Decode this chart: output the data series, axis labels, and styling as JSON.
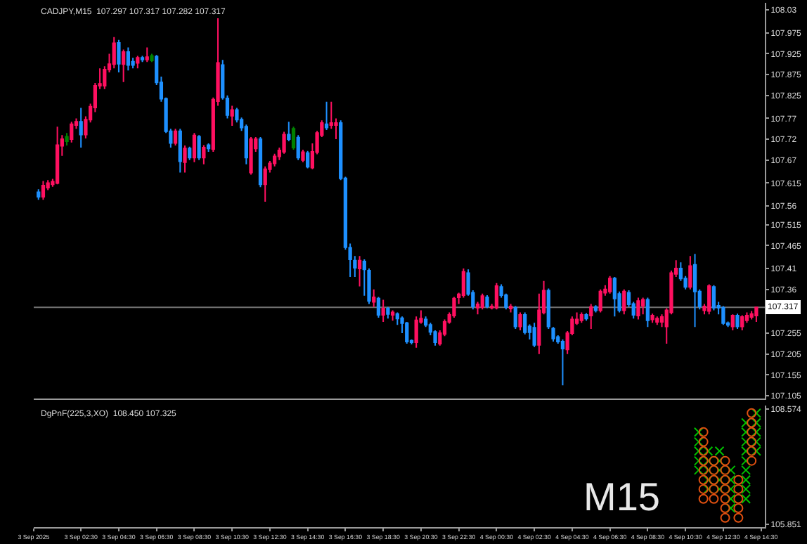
{
  "chart_data": [
    {
      "type": "candlestick",
      "title": "CADJPY,M15  107.297 107.317 107.282 107.317",
      "x": [
        "2025-09-03T00:15",
        "2025-09-03T00:30",
        "2025-09-03T00:45",
        "2025-09-03T01:00",
        "2025-09-03T01:15",
        "2025-09-03T01:30",
        "2025-09-03T01:45",
        "2025-09-03T02:00",
        "2025-09-03T02:15",
        "2025-09-03T02:30",
        "2025-09-03T02:45",
        "2025-09-03T03:00",
        "2025-09-03T03:15",
        "2025-09-03T03:30",
        "2025-09-03T03:45",
        "2025-09-03T04:00",
        "2025-09-03T04:15",
        "2025-09-03T04:30",
        "2025-09-03T04:45",
        "2025-09-03T05:00",
        "2025-09-03T05:15",
        "2025-09-03T05:30",
        "2025-09-03T05:45",
        "2025-09-03T06:00",
        "2025-09-03T06:15",
        "2025-09-03T06:30",
        "2025-09-03T06:45",
        "2025-09-03T07:00",
        "2025-09-03T07:15",
        "2025-09-03T07:30",
        "2025-09-03T07:45",
        "2025-09-03T08:00",
        "2025-09-03T08:15",
        "2025-09-03T08:30",
        "2025-09-03T08:45",
        "2025-09-03T09:00",
        "2025-09-03T09:15",
        "2025-09-03T09:30",
        "2025-09-03T09:45",
        "2025-09-03T10:00",
        "2025-09-03T10:15",
        "2025-09-03T10:30",
        "2025-09-03T10:45",
        "2025-09-03T11:00",
        "2025-09-03T11:15",
        "2025-09-03T11:30",
        "2025-09-03T11:45",
        "2025-09-03T12:00",
        "2025-09-03T12:15",
        "2025-09-03T12:30",
        "2025-09-03T12:45",
        "2025-09-03T13:00",
        "2025-09-03T13:15",
        "2025-09-03T13:30",
        "2025-09-03T13:45",
        "2025-09-03T14:00",
        "2025-09-03T14:15",
        "2025-09-03T14:30",
        "2025-09-03T14:45",
        "2025-09-03T15:00",
        "2025-09-03T15:15",
        "2025-09-03T15:30",
        "2025-09-03T15:45",
        "2025-09-03T16:00",
        "2025-09-03T16:15",
        "2025-09-03T16:30",
        "2025-09-03T16:45",
        "2025-09-03T17:00",
        "2025-09-03T17:15",
        "2025-09-03T17:30",
        "2025-09-03T17:45",
        "2025-09-03T18:00",
        "2025-09-03T18:15",
        "2025-09-03T18:30",
        "2025-09-03T18:45",
        "2025-09-03T19:00",
        "2025-09-03T19:15",
        "2025-09-03T19:30",
        "2025-09-03T19:45",
        "2025-09-03T20:00",
        "2025-09-03T20:15",
        "2025-09-03T20:30",
        "2025-09-03T20:45",
        "2025-09-03T21:00",
        "2025-09-03T21:15",
        "2025-09-03T21:30",
        "2025-09-03T21:45",
        "2025-09-03T22:00",
        "2025-09-03T22:15",
        "2025-09-03T22:30",
        "2025-09-03T22:45",
        "2025-09-03T23:00",
        "2025-09-03T23:15",
        "2025-09-03T23:30",
        "2025-09-03T23:45",
        "2025-09-04T00:00",
        "2025-09-04T00:15",
        "2025-09-04T00:30",
        "2025-09-04T00:45",
        "2025-09-04T01:00",
        "2025-09-04T01:15",
        "2025-09-04T01:30",
        "2025-09-04T01:45",
        "2025-09-04T02:00",
        "2025-09-04T02:15",
        "2025-09-04T02:30",
        "2025-09-04T02:45",
        "2025-09-04T03:00",
        "2025-09-04T03:15",
        "2025-09-04T03:30",
        "2025-09-04T03:45",
        "2025-09-04T04:00",
        "2025-09-04T04:15",
        "2025-09-04T04:30",
        "2025-09-04T04:45",
        "2025-09-04T05:00",
        "2025-09-04T05:15",
        "2025-09-04T05:30",
        "2025-09-04T05:45",
        "2025-09-04T06:00",
        "2025-09-04T06:15",
        "2025-09-04T06:30",
        "2025-09-04T06:45",
        "2025-09-04T07:00",
        "2025-09-04T07:15",
        "2025-09-04T07:30",
        "2025-09-04T07:45",
        "2025-09-04T08:00",
        "2025-09-04T08:15",
        "2025-09-04T08:30",
        "2025-09-04T08:45",
        "2025-09-04T09:00",
        "2025-09-04T09:15",
        "2025-09-04T09:30",
        "2025-09-04T09:45",
        "2025-09-04T10:00",
        "2025-09-04T10:15",
        "2025-09-04T10:30",
        "2025-09-04T10:45",
        "2025-09-04T11:00",
        "2025-09-04T11:15",
        "2025-09-04T11:30",
        "2025-09-04T11:45",
        "2025-09-04T12:00",
        "2025-09-04T12:15",
        "2025-09-04T12:30",
        "2025-09-04T12:45",
        "2025-09-04T13:00",
        "2025-09-04T13:15",
        "2025-09-04T13:30",
        "2025-09-04T13:45",
        "2025-09-04T14:00",
        "2025-09-04T14:15"
      ],
      "ohlc": [
        [
          107.593,
          107.6,
          107.575,
          107.582
        ],
        [
          107.582,
          107.62,
          107.575,
          107.609
        ],
        [
          107.604,
          107.622,
          107.598,
          107.615
        ],
        [
          107.612,
          107.625,
          107.606,
          107.618
        ],
        [
          107.615,
          107.75,
          107.612,
          107.706
        ],
        [
          107.704,
          107.73,
          107.68,
          107.72
        ],
        [
          107.715,
          107.735,
          107.705,
          107.726
        ],
        [
          107.72,
          107.762,
          107.712,
          107.756
        ],
        [
          107.754,
          107.77,
          107.745,
          107.762
        ],
        [
          107.762,
          107.795,
          107.7,
          107.731
        ],
        [
          107.731,
          107.775,
          107.722,
          107.767
        ],
        [
          107.767,
          107.805,
          107.76,
          107.798
        ],
        [
          107.796,
          107.855,
          107.785,
          107.848
        ],
        [
          107.848,
          107.89,
          107.84,
          107.853
        ],
        [
          107.848,
          107.895,
          107.84,
          107.887
        ],
        [
          107.887,
          107.925,
          107.88,
          107.9
        ],
        [
          107.9,
          107.965,
          107.89,
          107.95
        ],
        [
          107.951,
          107.958,
          107.88,
          107.901
        ],
        [
          107.9,
          107.935,
          107.857,
          107.929
        ],
        [
          107.929,
          107.94,
          107.885,
          107.898
        ],
        [
          107.906,
          107.915,
          107.89,
          107.898
        ],
        [
          107.903,
          107.92,
          107.89,
          107.915
        ],
        [
          107.915,
          107.92,
          107.905,
          107.911
        ],
        [
          107.911,
          107.94,
          107.905,
          107.917
        ],
        [
          107.909,
          107.925,
          107.905,
          107.92
        ],
        [
          107.918,
          107.922,
          107.85,
          107.856
        ],
        [
          107.856,
          107.87,
          107.81,
          107.817
        ],
        [
          107.817,
          107.82,
          107.735,
          107.739
        ],
        [
          107.739,
          107.745,
          107.7,
          107.711
        ],
        [
          107.711,
          107.745,
          107.705,
          107.739
        ],
        [
          107.739,
          107.745,
          107.64,
          107.667
        ],
        [
          107.665,
          107.705,
          107.64,
          107.698
        ],
        [
          107.698,
          107.702,
          107.67,
          107.676
        ],
        [
          107.676,
          107.735,
          107.665,
          107.729
        ],
        [
          107.726,
          107.73,
          107.67,
          107.676
        ],
        [
          107.676,
          107.706,
          107.66,
          107.7
        ],
        [
          107.706,
          107.71,
          107.69,
          107.698
        ],
        [
          107.696,
          107.82,
          107.69,
          107.815
        ],
        [
          107.811,
          108.01,
          107.8,
          107.903
        ],
        [
          107.898,
          107.91,
          107.815,
          107.82
        ],
        [
          107.818,
          107.825,
          107.77,
          107.778
        ],
        [
          107.776,
          107.8,
          107.752,
          107.79
        ],
        [
          107.79,
          107.795,
          107.76,
          107.767
        ],
        [
          107.767,
          107.772,
          107.74,
          107.748
        ],
        [
          107.75,
          107.755,
          107.66,
          107.676
        ],
        [
          107.64,
          107.725,
          107.635,
          107.72
        ],
        [
          107.698,
          107.725,
          107.69,
          107.72
        ],
        [
          107.72,
          107.725,
          107.605,
          107.612
        ],
        [
          107.612,
          107.655,
          107.57,
          107.648
        ],
        [
          107.648,
          107.668,
          107.64,
          107.662
        ],
        [
          107.662,
          107.685,
          107.655,
          107.679
        ],
        [
          107.679,
          107.7,
          107.67,
          107.693
        ],
        [
          107.69,
          107.738,
          107.685,
          107.731
        ],
        [
          107.731,
          107.762,
          107.715,
          107.72
        ],
        [
          107.7,
          107.75,
          107.695,
          107.745
        ],
        [
          107.724,
          107.73,
          107.67,
          107.676
        ],
        [
          107.67,
          107.695,
          107.665,
          107.689
        ],
        [
          107.687,
          107.692,
          107.65,
          107.654
        ],
        [
          107.652,
          107.71,
          107.648,
          107.69
        ],
        [
          107.689,
          107.74,
          107.684,
          107.735
        ],
        [
          107.73,
          107.765,
          107.725,
          107.759
        ],
        [
          107.756,
          107.81,
          107.742,
          107.748
        ],
        [
          107.754,
          107.81,
          107.745,
          107.759
        ],
        [
          107.754,
          107.77,
          107.72,
          107.759
        ],
        [
          107.759,
          107.765,
          107.622,
          107.626
        ],
        [
          107.626,
          107.63,
          107.455,
          107.461
        ],
        [
          107.46,
          107.47,
          107.39,
          107.432
        ],
        [
          107.429,
          107.44,
          107.39,
          107.412
        ],
        [
          107.41,
          107.44,
          107.367,
          107.429
        ],
        [
          107.427,
          107.432,
          107.345,
          107.408
        ],
        [
          107.405,
          107.41,
          107.325,
          107.332
        ],
        [
          107.33,
          107.36,
          107.318,
          107.341
        ],
        [
          107.338,
          107.342,
          107.292,
          107.299
        ],
        [
          107.299,
          107.335,
          107.282,
          107.314
        ],
        [
          107.314,
          107.318,
          107.29,
          107.301
        ],
        [
          107.299,
          107.31,
          107.285,
          107.305
        ],
        [
          107.301,
          107.305,
          107.275,
          107.29
        ],
        [
          107.291,
          107.295,
          107.255,
          107.279
        ],
        [
          107.279,
          107.282,
          107.23,
          107.235
        ],
        [
          107.237,
          107.24,
          107.228,
          107.233
        ],
        [
          107.233,
          107.295,
          107.22,
          107.286
        ],
        [
          107.282,
          107.31,
          107.278,
          107.29
        ],
        [
          107.288,
          107.295,
          107.27,
          107.275
        ],
        [
          107.275,
          107.28,
          107.25,
          107.258
        ],
        [
          107.258,
          107.262,
          107.225,
          107.233
        ],
        [
          107.23,
          107.262,
          107.225,
          107.255
        ],
        [
          107.253,
          107.288,
          107.248,
          107.282
        ],
        [
          107.282,
          107.305,
          107.278,
          107.299
        ],
        [
          107.297,
          107.342,
          107.292,
          107.338
        ],
        [
          107.341,
          107.352,
          107.325,
          107.348
        ],
        [
          107.346,
          107.41,
          107.34,
          107.402
        ],
        [
          107.399,
          107.408,
          107.345,
          107.349
        ],
        [
          107.352,
          107.358,
          107.312,
          107.319
        ],
        [
          107.316,
          107.33,
          107.3,
          107.324
        ],
        [
          107.318,
          107.35,
          107.312,
          107.344
        ],
        [
          107.341,
          107.346,
          107.315,
          107.319
        ],
        [
          107.316,
          107.325,
          107.312,
          107.319
        ],
        [
          107.316,
          107.375,
          107.312,
          107.368
        ],
        [
          107.366,
          107.372,
          107.34,
          107.346
        ],
        [
          107.346,
          107.35,
          107.312,
          107.318
        ],
        [
          107.314,
          107.325,
          107.305,
          107.319
        ],
        [
          107.316,
          107.32,
          107.265,
          107.271
        ],
        [
          107.271,
          107.305,
          107.262,
          107.299
        ],
        [
          107.299,
          107.305,
          107.252,
          107.257
        ],
        [
          107.271,
          107.276,
          107.24,
          107.257
        ],
        [
          107.268,
          107.28,
          107.222,
          107.227
        ],
        [
          107.227,
          107.35,
          107.205,
          107.31
        ],
        [
          107.305,
          107.38,
          107.3,
          107.357
        ],
        [
          107.357,
          107.362,
          107.265,
          107.271
        ],
        [
          107.266,
          107.27,
          107.235,
          107.242
        ],
        [
          107.246,
          107.25,
          107.23,
          107.235
        ],
        [
          107.235,
          107.24,
          107.13,
          107.218
        ],
        [
          107.216,
          107.26,
          107.205,
          107.255
        ],
        [
          107.255,
          107.295,
          107.25,
          107.288
        ],
        [
          107.279,
          107.305,
          107.275,
          107.288
        ],
        [
          107.286,
          107.305,
          107.28,
          107.299
        ],
        [
          107.299,
          107.303,
          107.285,
          107.29
        ],
        [
          107.297,
          107.325,
          107.265,
          107.318
        ],
        [
          107.318,
          107.322,
          107.305,
          107.31
        ],
        [
          107.31,
          107.36,
          107.305,
          107.355
        ],
        [
          107.352,
          107.37,
          107.345,
          107.36
        ],
        [
          107.355,
          107.392,
          107.35,
          107.386
        ],
        [
          107.386,
          107.39,
          107.295,
          107.338
        ],
        [
          107.349,
          107.355,
          107.305,
          107.31
        ],
        [
          107.31,
          107.36,
          107.3,
          107.355
        ],
        [
          107.352,
          107.358,
          107.318,
          107.324
        ],
        [
          107.325,
          107.33,
          107.29,
          107.299
        ],
        [
          107.297,
          107.34,
          107.288,
          107.332
        ],
        [
          107.321,
          107.34,
          107.3,
          107.335
        ],
        [
          107.335,
          107.34,
          107.27,
          107.286
        ],
        [
          107.288,
          107.302,
          107.28,
          107.297
        ],
        [
          107.282,
          107.295,
          107.275,
          107.29
        ],
        [
          107.282,
          107.3,
          107.27,
          107.294
        ],
        [
          107.271,
          107.315,
          107.23,
          107.31
        ],
        [
          107.305,
          107.405,
          107.3,
          107.399
        ],
        [
          107.397,
          107.43,
          107.39,
          107.41
        ],
        [
          107.41,
          107.425,
          107.38,
          107.386
        ],
        [
          107.386,
          107.392,
          107.36,
          107.366
        ],
        [
          107.366,
          107.44,
          107.36,
          107.416
        ],
        [
          107.419,
          107.445,
          107.27,
          107.355
        ],
        [
          107.355,
          107.36,
          107.312,
          107.319
        ],
        [
          107.31,
          107.325,
          107.3,
          107.319
        ],
        [
          107.308,
          107.372,
          107.3,
          107.368
        ],
        [
          107.366,
          107.37,
          107.31,
          107.316
        ],
        [
          107.321,
          107.33,
          107.3,
          107.316
        ],
        [
          107.316,
          107.32,
          107.275,
          107.279
        ],
        [
          107.279,
          107.283,
          107.27,
          107.275
        ],
        [
          107.271,
          107.3,
          107.262,
          107.297
        ],
        [
          107.297,
          107.302,
          107.265,
          107.271
        ],
        [
          107.271,
          107.298,
          107.262,
          107.294
        ],
        [
          107.286,
          107.305,
          107.28,
          107.297
        ],
        [
          107.294,
          107.308,
          107.288,
          107.301
        ],
        [
          107.297,
          107.317,
          107.282,
          107.317
        ]
      ],
      "colors": [
        "#1e90ff",
        "#ff1060",
        "#ff1060",
        "#ff1060",
        "#ff1060",
        "#ff1060",
        "#008000",
        "#ff1060",
        "#ff1060",
        "#1e90ff",
        "#ff1060",
        "#ff1060",
        "#ff1060",
        "#ff1060",
        "#ff1060",
        "#ff1060",
        "#ff1060",
        "#1e90ff",
        "#ff1060",
        "#1e90ff",
        "#1e90ff",
        "#ff1060",
        "#1e90ff",
        "#ff1060",
        "#008000",
        "#1e90ff",
        "#1e90ff",
        "#1e90ff",
        "#1e90ff",
        "#ff1060",
        "#1e90ff",
        "#ff1060",
        "#1e90ff",
        "#ff1060",
        "#1e90ff",
        "#ff1060",
        "#1e90ff",
        "#ff1060",
        "#ff1060",
        "#1e90ff",
        "#1e90ff",
        "#ff1060",
        "#1e90ff",
        "#1e90ff",
        "#1e90ff",
        "#ff1060",
        "#ff1060",
        "#1e90ff",
        "#ff1060",
        "#ff1060",
        "#ff1060",
        "#ff1060",
        "#ff1060",
        "#1e90ff",
        "#008000",
        "#1e90ff",
        "#ff1060",
        "#1e90ff",
        "#ff1060",
        "#ff1060",
        "#ff1060",
        "#1e90ff",
        "#ff1060",
        "#ff1060",
        "#1e90ff",
        "#1e90ff",
        "#1e90ff",
        "#1e90ff",
        "#ff1060",
        "#1e90ff",
        "#1e90ff",
        "#ff1060",
        "#1e90ff",
        "#ff1060",
        "#1e90ff",
        "#ff1060",
        "#1e90ff",
        "#1e90ff",
        "#1e90ff",
        "#1e90ff",
        "#ff1060",
        "#ff1060",
        "#1e90ff",
        "#1e90ff",
        "#1e90ff",
        "#ff1060",
        "#ff1060",
        "#ff1060",
        "#ff1060",
        "#ff1060",
        "#ff1060",
        "#1e90ff",
        "#1e90ff",
        "#ff1060",
        "#ff1060",
        "#1e90ff",
        "#ff1060",
        "#ff1060",
        "#1e90ff",
        "#1e90ff",
        "#ff1060",
        "#1e90ff",
        "#ff1060",
        "#1e90ff",
        "#1e90ff",
        "#1e90ff",
        "#ff1060",
        "#ff1060",
        "#1e90ff",
        "#1e90ff",
        "#1e90ff",
        "#1e90ff",
        "#ff1060",
        "#ff1060",
        "#ff1060",
        "#ff1060",
        "#1e90ff",
        "#ff1060",
        "#1e90ff",
        "#ff1060",
        "#ff1060",
        "#ff1060",
        "#1e90ff",
        "#1e90ff",
        "#ff1060",
        "#1e90ff",
        "#1e90ff",
        "#ff1060",
        "#ff1060",
        "#1e90ff",
        "#ff1060",
        "#ff1060",
        "#ff1060",
        "#ff1060",
        "#ff1060",
        "#ff1060",
        "#1e90ff",
        "#1e90ff",
        "#ff1060",
        "#1e90ff",
        "#1e90ff",
        "#ff1060",
        "#ff1060",
        "#1e90ff",
        "#1e90ff",
        "#1e90ff",
        "#1e90ff",
        "#ff1060",
        "#1e90ff",
        "#ff1060",
        "#ff1060",
        "#ff1060",
        "#ff1060"
      ],
      "xlim": [
        "2025-09-03T00:00",
        "2025-09-04T14:42"
      ],
      "ylim": [
        107.098,
        108.047
      ],
      "yticks": [
        108.03,
        107.975,
        107.925,
        107.875,
        107.825,
        107.77,
        107.72,
        107.67,
        107.615,
        107.56,
        107.515,
        107.465,
        107.41,
        107.36,
        107.255,
        107.205,
        107.155,
        107.105
      ],
      "ref_lines": [
        {
          "axis": "y",
          "value": 107.317,
          "label": "107.317",
          "color": "#707070"
        }
      ],
      "tick_labels": "y"
    },
    {
      "type": "scatter",
      "title": "DgPnF(225,3,XO)  108.450 107.325",
      "series": [
        {
          "color": "#00c000",
          "marker": "cross",
          "x": [
            "2025-09-04T11:12",
            "2025-09-04T11:12",
            "2025-09-04T11:12",
            "2025-09-04T11:12",
            "2025-09-04T11:12",
            "2025-09-04T11:42",
            "2025-09-04T11:42",
            "2025-09-04T11:42",
            "2025-09-04T11:42",
            "2025-09-04T11:42",
            "2025-09-04T12:18",
            "2025-09-04T12:18",
            "2025-09-04T12:18",
            "2025-09-04T12:18",
            "2025-09-04T12:18",
            "2025-09-04T12:54",
            "2025-09-04T12:54",
            "2025-09-04T12:54",
            "2025-09-04T12:54",
            "2025-09-04T12:54",
            "2025-09-04T13:42",
            "2025-09-04T13:42",
            "2025-09-04T13:42",
            "2025-09-04T13:42",
            "2025-09-04T13:42",
            "2025-09-04T13:42",
            "2025-09-04T13:42",
            "2025-09-04T13:42",
            "2025-09-04T13:42",
            "2025-09-04T14:15",
            "2025-09-04T14:15",
            "2025-09-04T14:15",
            "2025-09-04T14:15",
            "2025-09-04T14:15"
          ],
          "values": [
            107.13,
            107.35,
            107.58,
            107.8,
            108.03,
            106.68,
            106.9,
            107.13,
            107.35,
            107.58,
            106.68,
            106.9,
            107.13,
            107.35,
            107.58,
            106.23,
            106.45,
            106.68,
            106.9,
            107.13,
            106.45,
            106.68,
            106.9,
            107.13,
            107.35,
            107.58,
            107.8,
            108.03,
            108.25,
            107.58,
            107.8,
            108.03,
            108.25,
            108.48
          ]
        },
        {
          "color": "#e05010",
          "marker": "circle",
          "x": [
            "2025-09-04T11:27",
            "2025-09-04T11:27",
            "2025-09-04T11:27",
            "2025-09-04T11:27",
            "2025-09-04T11:27",
            "2025-09-04T11:27",
            "2025-09-04T11:27",
            "2025-09-04T11:27",
            "2025-09-04T12:00",
            "2025-09-04T12:00",
            "2025-09-04T12:00",
            "2025-09-04T12:00",
            "2025-09-04T12:00",
            "2025-09-04T12:36",
            "2025-09-04T12:36",
            "2025-09-04T12:36",
            "2025-09-04T12:36",
            "2025-09-04T12:36",
            "2025-09-04T12:36",
            "2025-09-04T12:36",
            "2025-09-04T13:18",
            "2025-09-04T13:18",
            "2025-09-04T13:18",
            "2025-09-04T13:18",
            "2025-09-04T13:18",
            "2025-09-04T14:00",
            "2025-09-04T14:00",
            "2025-09-04T14:00",
            "2025-09-04T14:00",
            "2025-09-04T14:00",
            "2025-09-04T14:00"
          ],
          "values": [
            106.45,
            106.68,
            106.9,
            107.13,
            107.35,
            107.58,
            107.8,
            108.03,
            106.45,
            106.68,
            106.9,
            107.13,
            107.35,
            106.0,
            106.23,
            106.45,
            106.68,
            106.9,
            107.13,
            107.35,
            106.0,
            106.23,
            106.45,
            106.68,
            106.9,
            107.35,
            107.58,
            107.8,
            108.03,
            108.25,
            108.48
          ]
        }
      ],
      "xlim": [
        "2025-09-03T00:00",
        "2025-09-04T14:42"
      ],
      "ylim": [
        105.78,
        108.66
      ],
      "yticks": [
        108.574,
        105.851
      ],
      "xticks": [
        {
          "value": "2025-09-03T00:00",
          "label": "3 Sep 2025"
        },
        {
          "value": "2025-09-03T02:30",
          "label": "3 Sep 02:30"
        },
        {
          "value": "2025-09-03T04:30",
          "label": "3 Sep 04:30"
        },
        {
          "value": "2025-09-03T06:30",
          "label": "3 Sep 06:30"
        },
        {
          "value": "2025-09-03T08:30",
          "label": "3 Sep 08:30"
        },
        {
          "value": "2025-09-03T10:30",
          "label": "3 Sep 10:30"
        },
        {
          "value": "2025-09-03T12:30",
          "label": "3 Sep 12:30"
        },
        {
          "value": "2025-09-03T14:30",
          "label": "3 Sep 14:30"
        },
        {
          "value": "2025-09-03T16:30",
          "label": "3 Sep 16:30"
        },
        {
          "value": "2025-09-03T18:30",
          "label": "3 Sep 18:30"
        },
        {
          "value": "2025-09-03T20:30",
          "label": "3 Sep 20:30"
        },
        {
          "value": "2025-09-03T22:30",
          "label": "3 Sep 22:30"
        },
        {
          "value": "2025-09-04T00:30",
          "label": "4 Sep 00:30"
        },
        {
          "value": "2025-09-04T02:30",
          "label": "4 Sep 02:30"
        },
        {
          "value": "2025-09-04T04:30",
          "label": "4 Sep 04:30"
        },
        {
          "value": "2025-09-04T06:30",
          "label": "4 Sep 06:30"
        },
        {
          "value": "2025-09-04T08:30",
          "label": "4 Sep 08:30"
        },
        {
          "value": "2025-09-04T10:30",
          "label": "4 Sep 10:30"
        },
        {
          "value": "2025-09-04T12:30",
          "label": "4 Sep 12:30"
        },
        {
          "value": "2025-09-04T14:30",
          "label": "4 Sep 14:30"
        }
      ],
      "annotations": [
        "M15"
      ]
    }
  ]
}
